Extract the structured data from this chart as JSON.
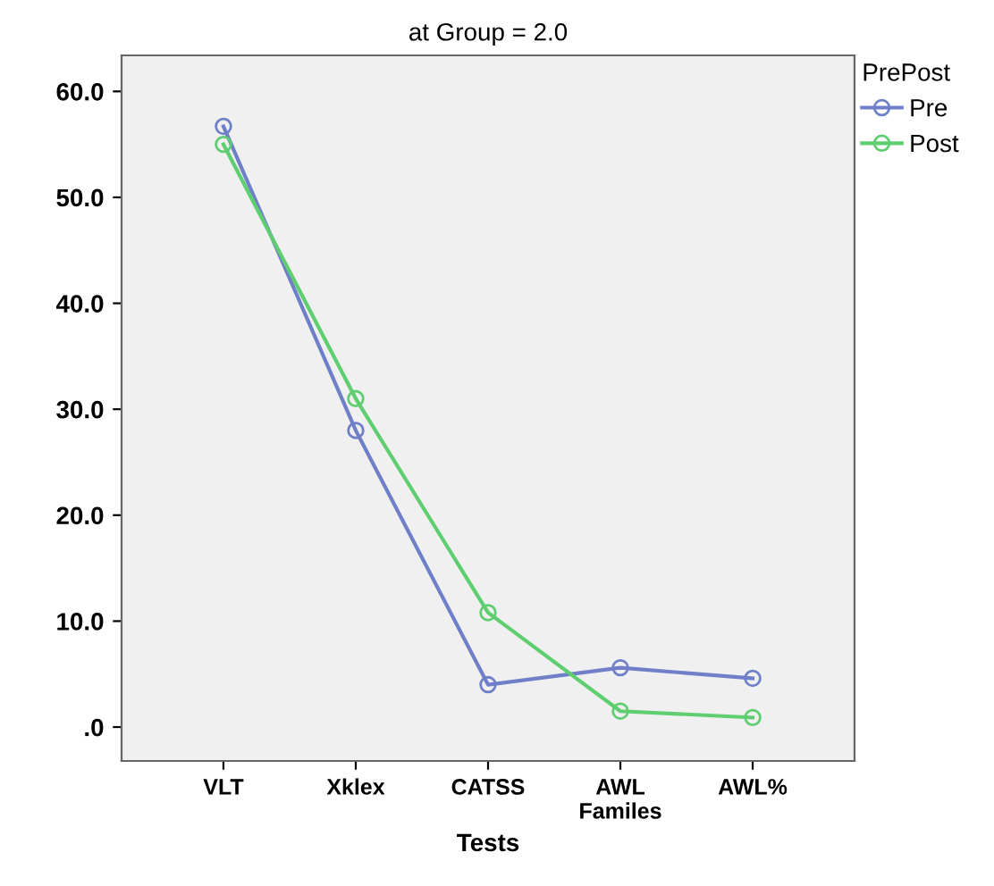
{
  "chart_data": {
    "type": "line",
    "title": "at Group = 2.0",
    "xlabel": "Tests",
    "legend_title": "PrePost",
    "categories": [
      "VLT",
      "Xklex",
      "CATSS",
      "AWL\nFamiles",
      "AWL%"
    ],
    "series": [
      {
        "name": "Pre",
        "color": "#6f7fc8",
        "values": [
          56.7,
          28.0,
          4.0,
          5.6,
          4.6
        ]
      },
      {
        "name": "Post",
        "color": "#5fce70",
        "values": [
          55.0,
          31.0,
          10.8,
          1.5,
          0.9
        ]
      }
    ],
    "ylim": [
      -3.2,
      63.4
    ],
    "yticks": [
      {
        "value": 0,
        "label": ".0"
      },
      {
        "value": 10,
        "label": "10.0"
      },
      {
        "value": 20,
        "label": "20.0"
      },
      {
        "value": 30,
        "label": "30.0"
      },
      {
        "value": 40,
        "label": "40.0"
      },
      {
        "value": 50,
        "label": "50.0"
      },
      {
        "value": 60,
        "label": "60.0"
      }
    ],
    "grid": false,
    "legend": "right",
    "marker": "circle",
    "line_style": "solid"
  }
}
